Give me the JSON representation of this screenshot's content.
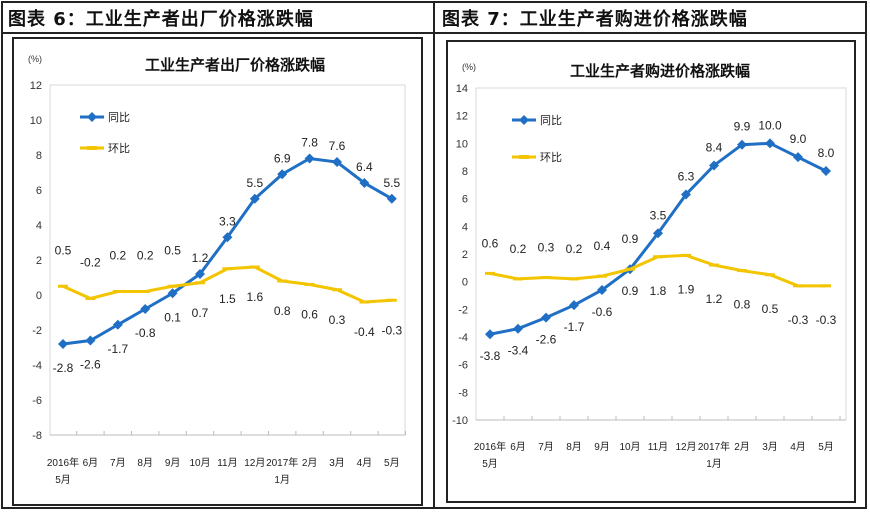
{
  "figures": [
    {
      "caption": "图表 6：工业生产者出厂价格涨跌幅"
    },
    {
      "caption": "图表 7：工业生产者购进价格涨跌幅"
    }
  ],
  "colors": {
    "yoy": "#1f6fc5",
    "mom": "#f2c500"
  },
  "chart_data": [
    {
      "type": "line",
      "title": "工业生产者出厂价格涨跌幅",
      "ylabel": "(%)",
      "ylim": [
        -8,
        12
      ],
      "yticks": [
        -8,
        -6,
        -4,
        -2,
        0,
        2,
        4,
        6,
        8,
        10,
        12
      ],
      "categories": [
        [
          "2016年",
          "5月"
        ],
        [
          "6月"
        ],
        [
          "7月"
        ],
        [
          "8月"
        ],
        [
          "9月"
        ],
        [
          "10月"
        ],
        [
          "11月"
        ],
        [
          "12月"
        ],
        [
          "2017年",
          "1月"
        ],
        [
          "2月"
        ],
        [
          "3月"
        ],
        [
          "4月"
        ],
        [
          "5月"
        ]
      ],
      "legend": "top-left",
      "series": [
        {
          "name": "同比",
          "values": [
            -2.8,
            -2.6,
            -1.7,
            -0.8,
            0.1,
            1.2,
            3.3,
            5.5,
            6.9,
            7.8,
            7.6,
            6.4,
            5.5
          ]
        },
        {
          "name": "环比",
          "values": [
            0.5,
            -0.2,
            0.2,
            0.2,
            0.5,
            0.7,
            1.5,
            1.6,
            0.8,
            0.6,
            0.3,
            -0.4,
            -0.3
          ]
        }
      ]
    },
    {
      "type": "line",
      "title": "工业生产者购进价格涨跌幅",
      "ylabel": "(%)",
      "ylim": [
        -10,
        14
      ],
      "yticks": [
        -10,
        -8,
        -6,
        -4,
        -2,
        0,
        2,
        4,
        6,
        8,
        10,
        12,
        14
      ],
      "categories": [
        [
          "2016年",
          "5月"
        ],
        [
          "6月"
        ],
        [
          "7月"
        ],
        [
          "8月"
        ],
        [
          "9月"
        ],
        [
          "10月"
        ],
        [
          "11月"
        ],
        [
          "12月"
        ],
        [
          "2017年",
          "1月"
        ],
        [
          "2月"
        ],
        [
          "3月"
        ],
        [
          "4月"
        ],
        [
          "5月"
        ]
      ],
      "legend": "top-left",
      "series": [
        {
          "name": "同比",
          "values": [
            -3.8,
            -3.4,
            -2.6,
            -1.7,
            -0.6,
            0.9,
            3.5,
            6.3,
            8.4,
            9.9,
            10.0,
            9.0,
            8.0
          ]
        },
        {
          "name": "环比",
          "values": [
            0.6,
            0.2,
            0.3,
            0.2,
            0.4,
            0.9,
            1.8,
            1.9,
            1.2,
            0.8,
            0.5,
            -0.3,
            -0.3
          ]
        }
      ]
    }
  ]
}
